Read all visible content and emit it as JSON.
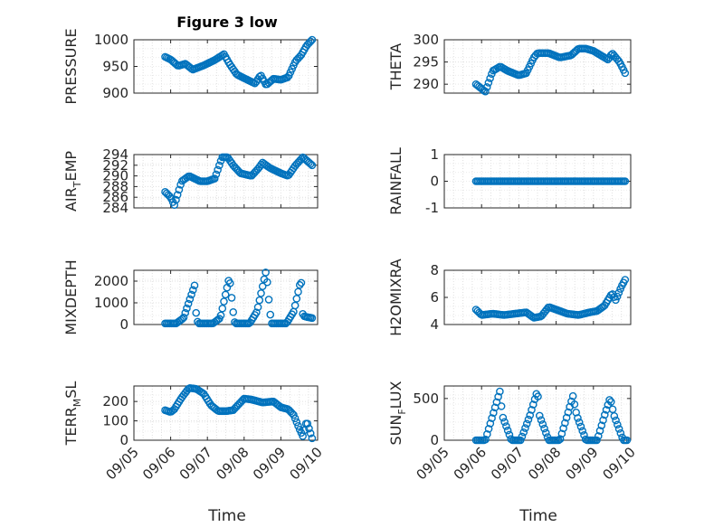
{
  "figure": {
    "title": "Figure 3 low",
    "xlabel": "Time",
    "marker_color": "#0072bd"
  },
  "chart_data": [
    {
      "type": "scatter",
      "ylabel": "PRESSURE",
      "ylim": [
        900,
        1000
      ],
      "yticks": [
        900,
        950,
        1000
      ],
      "xlim": [
        0,
        5
      ],
      "xticks": [
        "09/05",
        "09/06",
        "09/07",
        "09/08",
        "09/09",
        "09/10"
      ],
      "x_knots": [
        0.85,
        1.0,
        1.2,
        1.4,
        1.6,
        1.9,
        2.2,
        2.45,
        2.6,
        2.8,
        3.0,
        3.3,
        3.45,
        3.6,
        3.8,
        4.0,
        4.2,
        4.4,
        4.55,
        4.7,
        4.85
      ],
      "y_knots": [
        968,
        963,
        951,
        955,
        944,
        952,
        962,
        973,
        955,
        935,
        928,
        918,
        934,
        915,
        927,
        925,
        930,
        960,
        971,
        989,
        1000
      ]
    },
    {
      "type": "scatter",
      "ylabel": "THETA",
      "ylim": [
        288,
        300
      ],
      "yticks": [
        290,
        295,
        300
      ],
      "xlim": [
        0,
        5
      ],
      "xticks": [
        "09/05",
        "09/06",
        "09/07",
        "09/08",
        "09/09",
        "09/10"
      ],
      "x_knots": [
        0.85,
        1.0,
        1.1,
        1.3,
        1.5,
        1.7,
        2.0,
        2.2,
        2.4,
        2.5,
        2.8,
        3.1,
        3.4,
        3.6,
        3.8,
        4.0,
        4.2,
        4.4,
        4.5,
        4.7,
        4.85
      ],
      "y_knots": [
        290,
        289,
        288.3,
        293,
        294,
        293,
        292,
        292.5,
        296,
        297,
        297,
        296,
        296.5,
        298,
        298,
        297.5,
        296.5,
        295.5,
        297,
        295,
        292.5
      ]
    },
    {
      "type": "scatter",
      "ylabel": "AIR_TEMP",
      "ylabel_parts": [
        "AIR",
        "T",
        "EMP"
      ],
      "ylim": [
        284,
        294
      ],
      "yticks": [
        284,
        286,
        288,
        290,
        292,
        294
      ],
      "xlim": [
        0,
        5
      ],
      "xticks": [
        "09/05",
        "09/06",
        "09/07",
        "09/08",
        "09/09",
        "09/10"
      ],
      "x_knots": [
        0.85,
        1.0,
        1.1,
        1.3,
        1.5,
        1.8,
        2.0,
        2.2,
        2.4,
        2.55,
        2.7,
        2.9,
        3.2,
        3.4,
        3.5,
        3.7,
        4.0,
        4.2,
        4.4,
        4.6,
        4.85
      ],
      "y_knots": [
        287,
        286,
        284.5,
        289,
        290,
        289,
        289,
        289.5,
        293.5,
        293.5,
        292,
        290.5,
        290,
        291.5,
        292.5,
        291.5,
        290.5,
        290,
        292,
        293.5,
        292
      ]
    },
    {
      "type": "scatter",
      "ylabel": "RAINFALL",
      "ylim": [
        -1,
        1
      ],
      "yticks": [
        -1,
        0,
        1
      ],
      "xlim": [
        0,
        5
      ],
      "xticks": [
        "09/05",
        "09/06",
        "09/07",
        "09/08",
        "09/09",
        "09/10"
      ],
      "x_knots": [
        0.85,
        4.85
      ],
      "y_knots": [
        0,
        0
      ]
    },
    {
      "type": "scatter",
      "ylabel": "MIXDEPTH",
      "ylim": [
        0,
        2500
      ],
      "yticks": [
        0,
        1000,
        2000
      ],
      "xlim": [
        0,
        5
      ],
      "xticks": [
        "09/05",
        "09/06",
        "09/07",
        "09/08",
        "09/09",
        "09/10"
      ],
      "x_knots": [
        0.85,
        1.15,
        1.35,
        1.65,
        1.7,
        1.75,
        2.15,
        2.35,
        2.6,
        2.7,
        2.75,
        3.15,
        3.35,
        3.6,
        3.7,
        3.75,
        4.15,
        4.35,
        4.55,
        4.6,
        4.7,
        4.85
      ],
      "y_knots": [
        50,
        50,
        300,
        1800,
        300,
        50,
        50,
        300,
        2200,
        600,
        50,
        50,
        600,
        2500,
        600,
        50,
        50,
        600,
        2100,
        400,
        350,
        300
      ]
    },
    {
      "type": "scatter",
      "ylabel": "H2OMIXRA",
      "ylim": [
        4,
        8
      ],
      "yticks": [
        4,
        6,
        8
      ],
      "xlim": [
        0,
        5
      ],
      "xticks": [
        "09/05",
        "09/06",
        "09/07",
        "09/08",
        "09/09",
        "09/10"
      ],
      "x_knots": [
        0.85,
        1.0,
        1.3,
        1.6,
        1.9,
        2.2,
        2.4,
        2.6,
        2.8,
        3.0,
        3.3,
        3.6,
        3.9,
        4.1,
        4.3,
        4.5,
        4.6,
        4.75,
        4.85
      ],
      "y_knots": [
        5.1,
        4.7,
        4.8,
        4.7,
        4.8,
        4.9,
        4.5,
        4.6,
        5.3,
        5.1,
        4.8,
        4.7,
        4.9,
        5.0,
        5.4,
        6.3,
        5.8,
        6.8,
        7.3
      ]
    },
    {
      "type": "scatter",
      "ylabel": "TERR_MSL",
      "ylabel_parts": [
        "TERR",
        "M",
        "SL"
      ],
      "ylim": [
        0,
        280
      ],
      "yticks": [
        0,
        100,
        200
      ],
      "xlim": [
        0,
        5
      ],
      "xticks": [
        "09/05",
        "09/06",
        "09/07",
        "09/08",
        "09/09",
        "09/10"
      ],
      "x_knots": [
        0.85,
        1.0,
        1.1,
        1.3,
        1.5,
        1.7,
        1.9,
        2.1,
        2.3,
        2.5,
        2.7,
        3.0,
        3.2,
        3.5,
        3.8,
        4.0,
        4.2,
        4.35,
        4.5,
        4.6,
        4.7,
        4.85
      ],
      "y_knots": [
        155,
        145,
        160,
        220,
        270,
        265,
        240,
        180,
        150,
        150,
        155,
        215,
        210,
        195,
        200,
        170,
        160,
        130,
        60,
        20,
        100,
        10
      ]
    },
    {
      "type": "scatter",
      "ylabel": "SUN_FLUX",
      "ylabel_parts": [
        "SUN",
        "F",
        "LUX"
      ],
      "ylim": [
        0,
        650
      ],
      "yticks": [
        0,
        500
      ],
      "xlim": [
        0,
        5
      ],
      "xticks": [
        "09/05",
        "09/06",
        "09/07",
        "09/08",
        "09/09",
        "09/10"
      ],
      "x_knots": [
        0.85,
        1.1,
        1.3,
        1.5,
        1.55,
        1.8,
        2.05,
        2.3,
        2.5,
        2.55,
        2.8,
        3.1,
        3.3,
        3.45,
        3.55,
        3.8,
        4.1,
        4.3,
        4.45,
        4.55,
        4.8,
        4.9
      ],
      "y_knots": [
        0,
        0,
        300,
        600,
        300,
        0,
        0,
        300,
        600,
        300,
        0,
        0,
        300,
        530,
        300,
        0,
        0,
        300,
        510,
        300,
        0,
        0
      ]
    }
  ]
}
